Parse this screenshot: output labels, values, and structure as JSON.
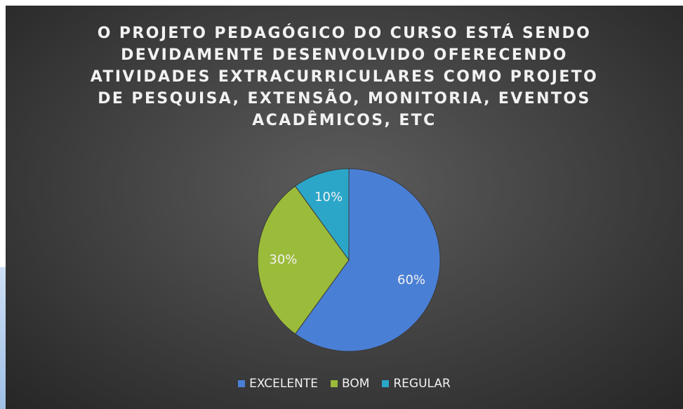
{
  "chart_data": {
    "type": "pie",
    "title": "O PROJETO PEDAGÓGICO DO CURSO ESTÁ SENDO DEVIDAMENTE DESENVOLVIDO OFERECENDO ATIVIDADES EXTRACURRICULARES COMO PROJETO DE PESQUISA, EXTENSÃO, MONITORIA, EVENTOS ACADÊMICOS, ETC",
    "categories": [
      "EXCELENTE",
      "BOM",
      "REGULAR"
    ],
    "values": [
      60,
      30,
      10
    ],
    "value_labels": [
      "60%",
      "30%",
      "10%"
    ],
    "colors": [
      "#4a7fd6",
      "#9bbb3a",
      "#2ba6c9"
    ],
    "legend": "bottom"
  }
}
